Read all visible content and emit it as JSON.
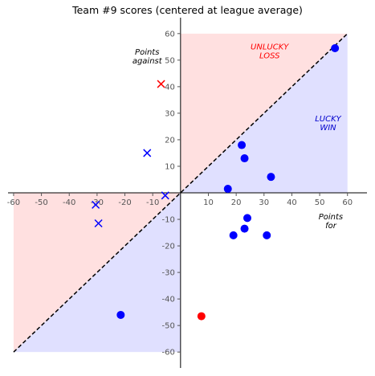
{
  "chart_data": {
    "type": "scatter",
    "title": "Team #9 scores (centered at league average)",
    "xlim": [
      -62,
      67
    ],
    "ylim": [
      -66,
      66
    ],
    "xticks": [
      -60,
      -50,
      -40,
      -30,
      -20,
      -10,
      10,
      20,
      30,
      40,
      50,
      60
    ],
    "yticks": [
      -60,
      -50,
      -40,
      -30,
      -20,
      -10,
      10,
      20,
      30,
      40,
      50,
      60
    ],
    "grid": false,
    "regions": [
      {
        "name": "unlucky-loss",
        "color": "#ffe0e0",
        "polygon": [
          [
            0,
            0
          ],
          [
            0,
            60
          ],
          [
            60,
            60
          ]
        ]
      },
      {
        "name": "lucky-win",
        "color": "#e0e0ff",
        "polygon": [
          [
            0,
            0
          ],
          [
            60,
            60
          ],
          [
            60,
            0
          ]
        ]
      },
      {
        "name": "lower-left-pink",
        "color": "#ffe0e0",
        "polygon": [
          [
            0,
            0
          ],
          [
            -60,
            0
          ],
          [
            -60,
            -60
          ]
        ]
      },
      {
        "name": "lower-left-blue",
        "color": "#e0e0ff",
        "polygon": [
          [
            0,
            0
          ],
          [
            -60,
            -60
          ],
          [
            0,
            -60
          ]
        ]
      }
    ],
    "diagonal": {
      "from": [
        -60,
        -60
      ],
      "to": [
        60,
        60
      ],
      "style": "dashed",
      "color": "#000000"
    },
    "annotations": [
      {
        "text": [
          "Points",
          "against"
        ],
        "x": -12,
        "y": 52,
        "color": "#000000"
      },
      {
        "text": [
          "Points",
          "for"
        ],
        "x": 54,
        "y": -10,
        "color": "#000000"
      },
      {
        "text": [
          "UNLUCKY",
          "LOSS"
        ],
        "x": 32,
        "y": 54,
        "color": "#ff0000"
      },
      {
        "text": [
          "LUCKY",
          "WIN"
        ],
        "x": 53,
        "y": 27,
        "color": "#0000cc"
      }
    ],
    "series": [
      {
        "marker": "circle",
        "color": "#0000ff",
        "points": [
          [
            55.5,
            54.5
          ],
          [
            22,
            18
          ],
          [
            23,
            13
          ],
          [
            32.5,
            6
          ],
          [
            17,
            1.5
          ],
          [
            -21.5,
            -46
          ],
          [
            24,
            -9.5
          ],
          [
            23,
            -13.5
          ],
          [
            19,
            -16
          ],
          [
            31,
            -16
          ]
        ]
      },
      {
        "marker": "circle",
        "color": "#ff0000",
        "points": [
          [
            7.5,
            -46.5
          ]
        ]
      },
      {
        "marker": "x",
        "color": "#0000ff",
        "points": [
          [
            -12,
            15
          ],
          [
            -5.5,
            -1
          ],
          [
            -30.5,
            -4.5
          ],
          [
            -29.5,
            -11.5
          ]
        ]
      },
      {
        "marker": "x",
        "color": "#ff0000",
        "points": [
          [
            -7,
            41
          ]
        ]
      }
    ]
  }
}
